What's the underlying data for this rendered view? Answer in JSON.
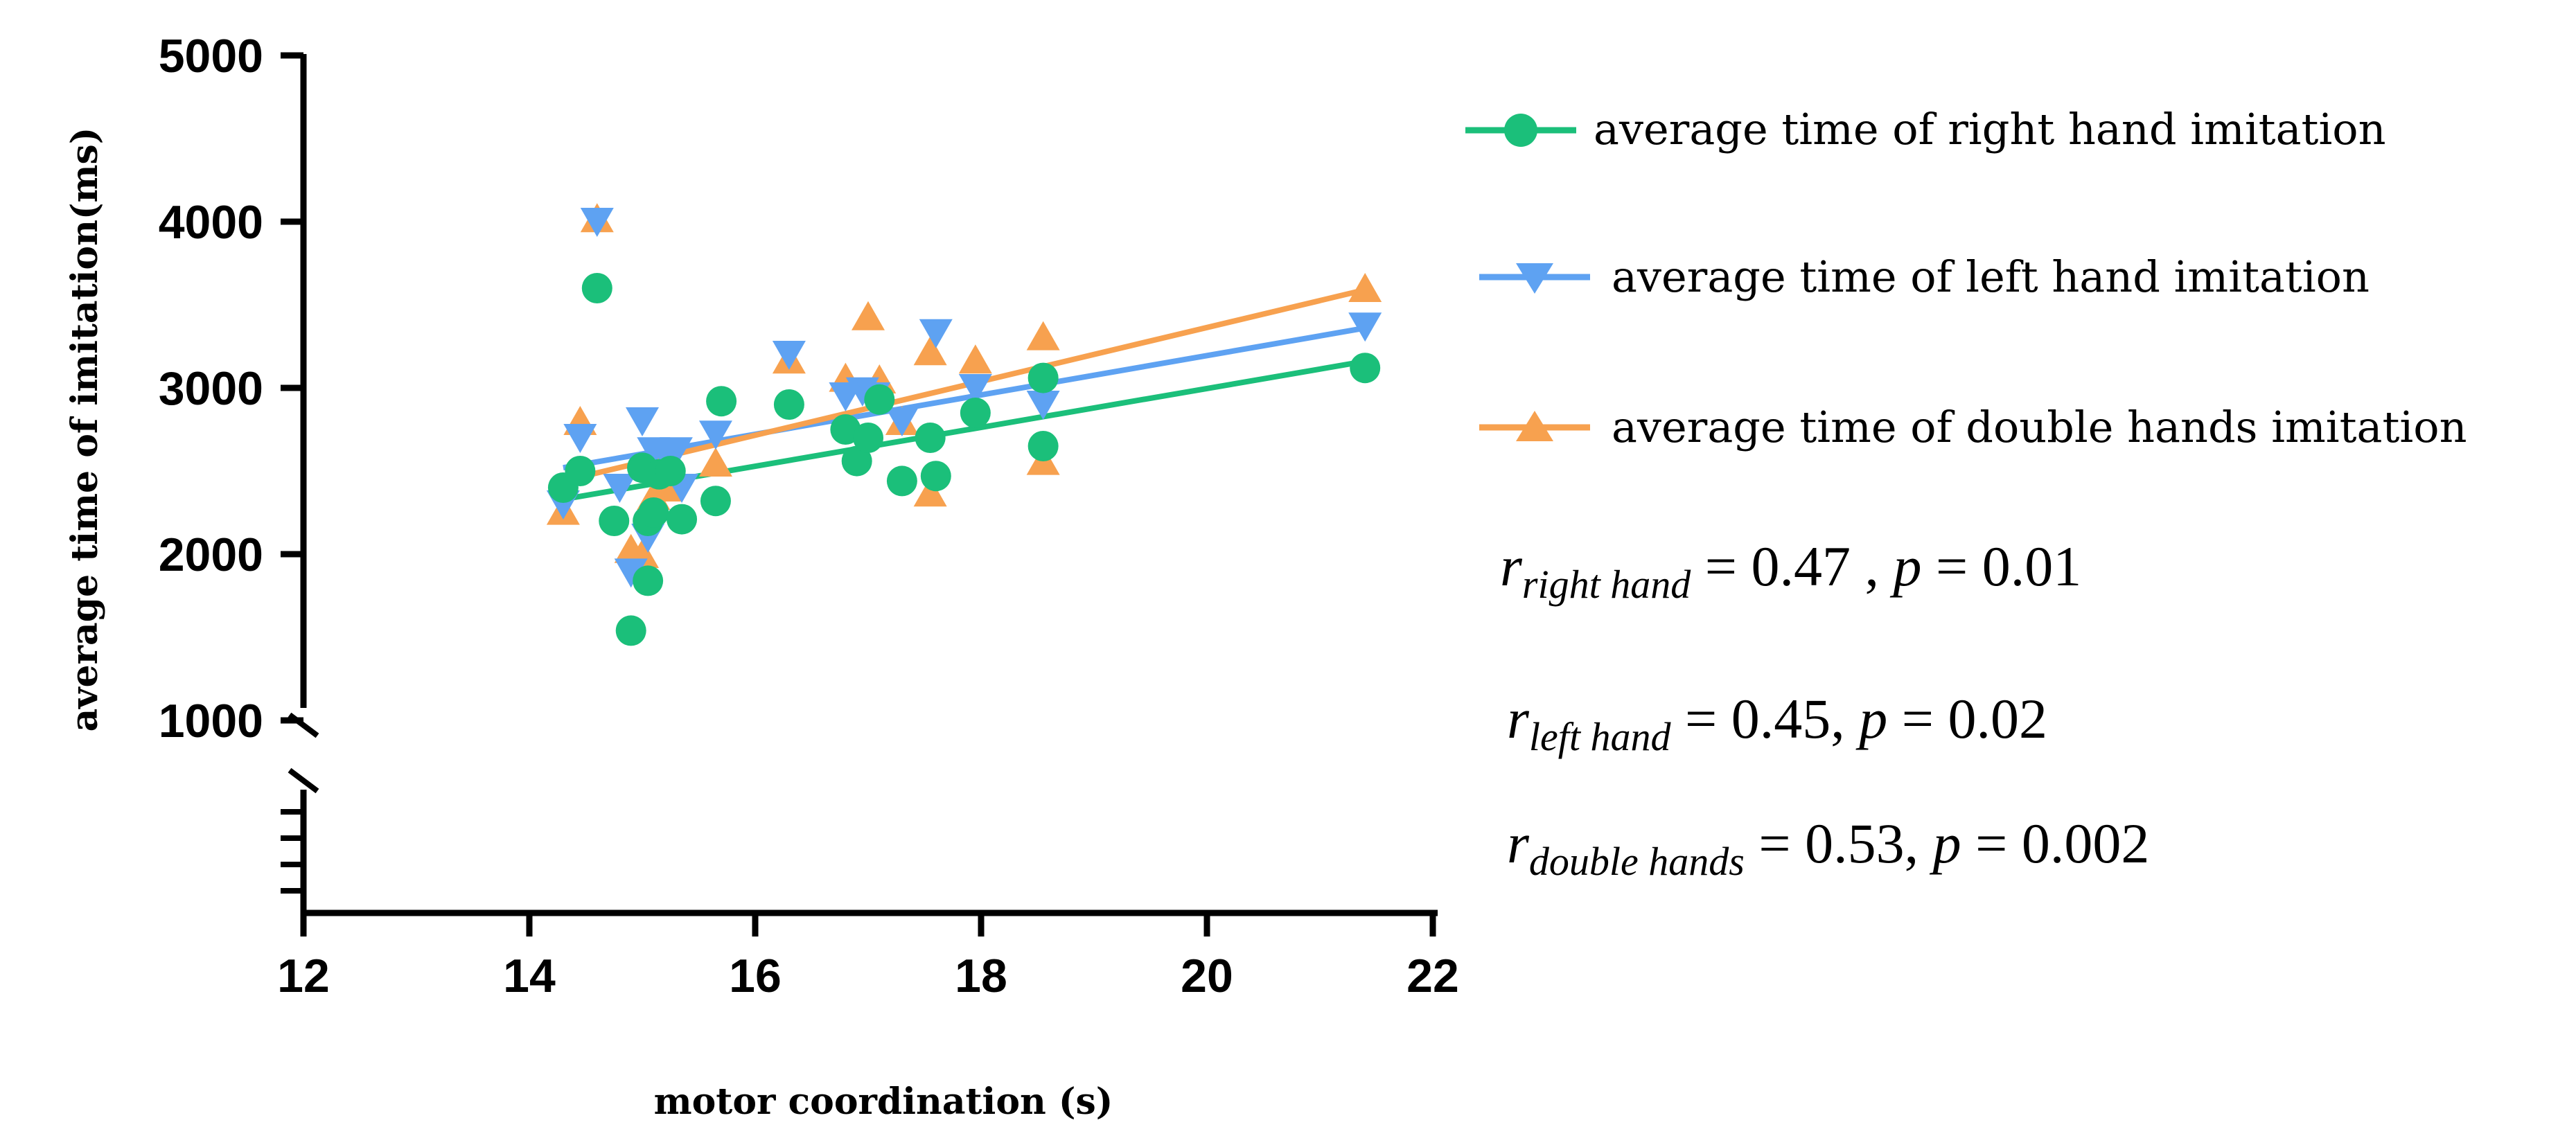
{
  "chart_data": {
    "type": "scatter",
    "xlabel": "motor coordination (s)",
    "ylabel": "average time of imitation(ms)",
    "xlim": [
      12,
      22
    ],
    "ylim": [
      1000,
      5000
    ],
    "x_ticks": [
      "12",
      "14",
      "16",
      "18",
      "20",
      "22"
    ],
    "y_ticks": [
      "1000",
      "2000",
      "3000",
      "4000",
      "5000"
    ],
    "y_axis_break": true,
    "colors": {
      "right": "#1bbf7a",
      "left": "#5ea2f2",
      "double": "#f7a14f"
    },
    "series": [
      {
        "name": "average time of right hand imitation",
        "marker": "circle",
        "points": [
          [
            14.3,
            2400
          ],
          [
            14.45,
            2500
          ],
          [
            14.6,
            3600
          ],
          [
            14.75,
            2200
          ],
          [
            14.9,
            1540
          ],
          [
            15.0,
            2520
          ],
          [
            15.05,
            1840
          ],
          [
            15.05,
            2200
          ],
          [
            15.1,
            2250
          ],
          [
            15.15,
            2480
          ],
          [
            15.25,
            2500
          ],
          [
            15.35,
            2210
          ],
          [
            15.65,
            2320
          ],
          [
            15.7,
            2920
          ],
          [
            16.3,
            2900
          ],
          [
            16.8,
            2750
          ],
          [
            16.9,
            2560
          ],
          [
            17.0,
            2700
          ],
          [
            17.1,
            2930
          ],
          [
            17.3,
            2440
          ],
          [
            17.55,
            2700
          ],
          [
            17.6,
            2470
          ],
          [
            17.95,
            2850
          ],
          [
            18.55,
            3060
          ],
          [
            18.55,
            2650
          ],
          [
            21.4,
            3120
          ]
        ],
        "fit": [
          [
            14.3,
            2330
          ],
          [
            21.4,
            3160
          ]
        ]
      },
      {
        "name": "average time of left hand imitation",
        "marker": "triangle-down",
        "points": [
          [
            14.3,
            2300
          ],
          [
            14.45,
            2700
          ],
          [
            14.6,
            4000
          ],
          [
            14.8,
            2400
          ],
          [
            14.9,
            1890
          ],
          [
            15.0,
            2800
          ],
          [
            15.05,
            2100
          ],
          [
            15.1,
            2620
          ],
          [
            15.2,
            2600
          ],
          [
            15.3,
            2620
          ],
          [
            15.35,
            2400
          ],
          [
            15.65,
            2720
          ],
          [
            16.3,
            3200
          ],
          [
            16.8,
            2950
          ],
          [
            16.95,
            2980
          ],
          [
            17.05,
            2950
          ],
          [
            17.3,
            2800
          ],
          [
            17.6,
            3330
          ],
          [
            17.95,
            3000
          ],
          [
            18.55,
            2900
          ],
          [
            21.4,
            3370
          ]
        ],
        "fit": [
          [
            14.3,
            2520
          ],
          [
            21.4,
            3360
          ]
        ]
      },
      {
        "name": "average time of double hands imitation",
        "marker": "triangle-up",
        "points": [
          [
            14.3,
            2260
          ],
          [
            14.45,
            2800
          ],
          [
            14.6,
            4020
          ],
          [
            14.9,
            2030
          ],
          [
            15.0,
            2000
          ],
          [
            15.1,
            2350
          ],
          [
            15.2,
            2400
          ],
          [
            15.65,
            2550
          ],
          [
            16.3,
            3170
          ],
          [
            16.8,
            3060
          ],
          [
            17.0,
            3430
          ],
          [
            17.1,
            3050
          ],
          [
            17.3,
            2800
          ],
          [
            17.55,
            3220
          ],
          [
            17.55,
            2370
          ],
          [
            17.95,
            3170
          ],
          [
            18.55,
            3310
          ],
          [
            18.55,
            2560
          ],
          [
            21.4,
            3600
          ]
        ],
        "fit": [
          [
            14.3,
            2440
          ],
          [
            21.4,
            3590
          ]
        ]
      }
    ],
    "annotations": [
      {
        "r_sub": "right hand",
        "r_value": "0.47",
        "p_value": "0.01"
      },
      {
        "r_sub": "left hand",
        "r_value": "0.45",
        "p_value": "0.02"
      },
      {
        "r_sub": "double hands",
        "r_value": "0.53",
        "p_value": "0.002"
      }
    ]
  }
}
